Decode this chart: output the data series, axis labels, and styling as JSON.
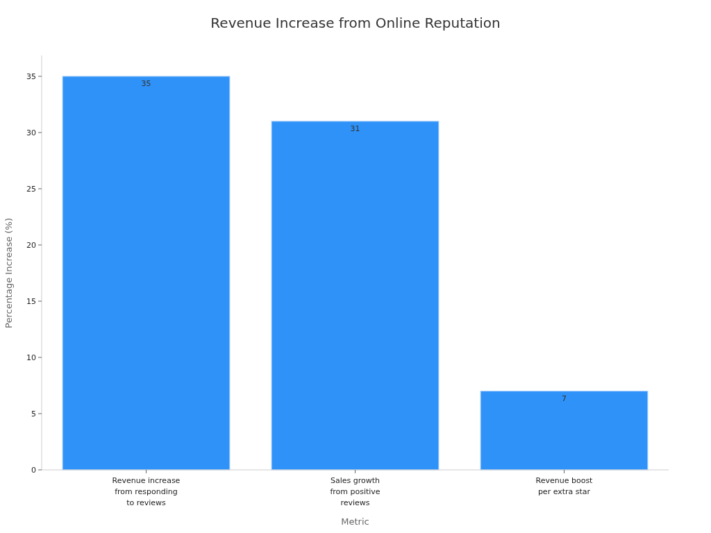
{
  "chart_data": {
    "type": "bar",
    "title": "Revenue Increase from Online Reputation",
    "xlabel": "Metric",
    "ylabel": "Percentage Increase (%)",
    "categories": [
      "Revenue increase from responding to reviews",
      "Sales growth from positive reviews",
      "Revenue boost per extra star"
    ],
    "values": [
      35,
      31,
      7
    ],
    "color": "#2f92f8",
    "ylim": [
      0,
      36.85
    ],
    "yticks": [
      0,
      5,
      10,
      15,
      20,
      25,
      30,
      35
    ],
    "grid": false,
    "data_labels": true
  }
}
